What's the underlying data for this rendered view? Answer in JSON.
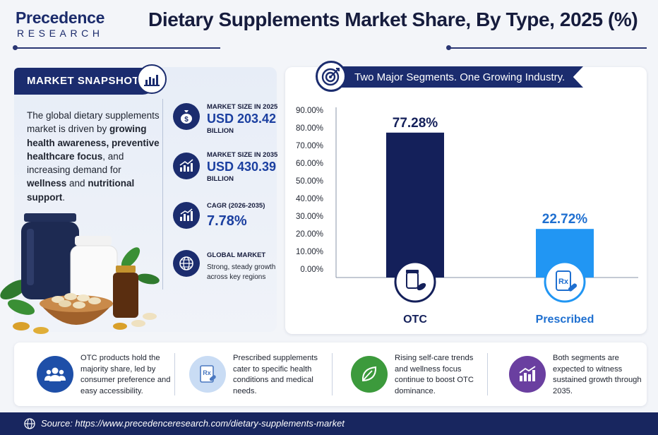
{
  "logo": {
    "main": "Precedence",
    "sub": "RESEARCH"
  },
  "title": "Dietary Supplements Market Share, By Type, 2025 (%)",
  "snapshot": {
    "tab_label": "MARKET SNAPSHOT",
    "text_parts": [
      {
        "t": "The global dietary supplements market is driven by ",
        "b": false
      },
      {
        "t": "growing health awareness, preventive healthcare focus",
        "b": true
      },
      {
        "t": ", and increasing demand for ",
        "b": false
      },
      {
        "t": "wellness",
        "b": true
      },
      {
        "t": " and ",
        "b": false
      },
      {
        "t": "nutritional support",
        "b": true
      },
      {
        "t": ".",
        "b": false
      }
    ],
    "kpis": [
      {
        "label": "MARKET SIZE IN 2025",
        "value": "USD 203.42",
        "unit": "BILLION",
        "icon": "money-bag-icon"
      },
      {
        "label": "MARKET SIZE IN 2035",
        "value": "USD 430.39",
        "unit": "BILLION",
        "icon": "growth-chart-icon"
      },
      {
        "label": "CAGR (2026-2035)",
        "value": "7.78%",
        "unit": "",
        "icon": "bar-chart-icon"
      },
      {
        "label": "GLOBAL MARKET",
        "value": "",
        "unit": "",
        "desc": "Strong, steady growth across key regions",
        "icon": "globe-icon"
      }
    ]
  },
  "chart_panel": {
    "ribbon": "Two Major Segments. One Growing Industry."
  },
  "chart_data": {
    "type": "bar",
    "categories": [
      "OTC",
      "Prescribed"
    ],
    "values": [
      77.28,
      22.72
    ],
    "value_labels": [
      "77.28%",
      "22.72%"
    ],
    "ylim": [
      0,
      90
    ],
    "yticks": [
      "0.00%",
      "10.00%",
      "20.00%",
      "30.00%",
      "40.00%",
      "50.00%",
      "60.00%",
      "70.00%",
      "80.00%",
      "90.00%"
    ],
    "colors": [
      "#14205a",
      "#2196f3"
    ],
    "icons": [
      "pill-bottle-icon",
      "prescription-icon"
    ]
  },
  "insights": [
    {
      "text": "OTC products hold the majority share, led by consumer preference and easy accessibility.",
      "icon": "people-icon",
      "color": "#1e4fa8"
    },
    {
      "text": "Prescribed supplements cater to specific health conditions and medical needs.",
      "icon": "prescription-icon",
      "color": "#c9dcf4"
    },
    {
      "text": "Rising self-care trends and wellness focus continue to boost OTC dominance.",
      "icon": "leaf-icon",
      "color": "#3c9a3c"
    },
    {
      "text": "Both segments are expected to witness sustained growth through 2035.",
      "icon": "growth-chart-icon",
      "color": "#6a3fa0"
    }
  ],
  "footer": {
    "source": "Source: https://www.precedenceresearch.com/dietary-supplements-market"
  }
}
